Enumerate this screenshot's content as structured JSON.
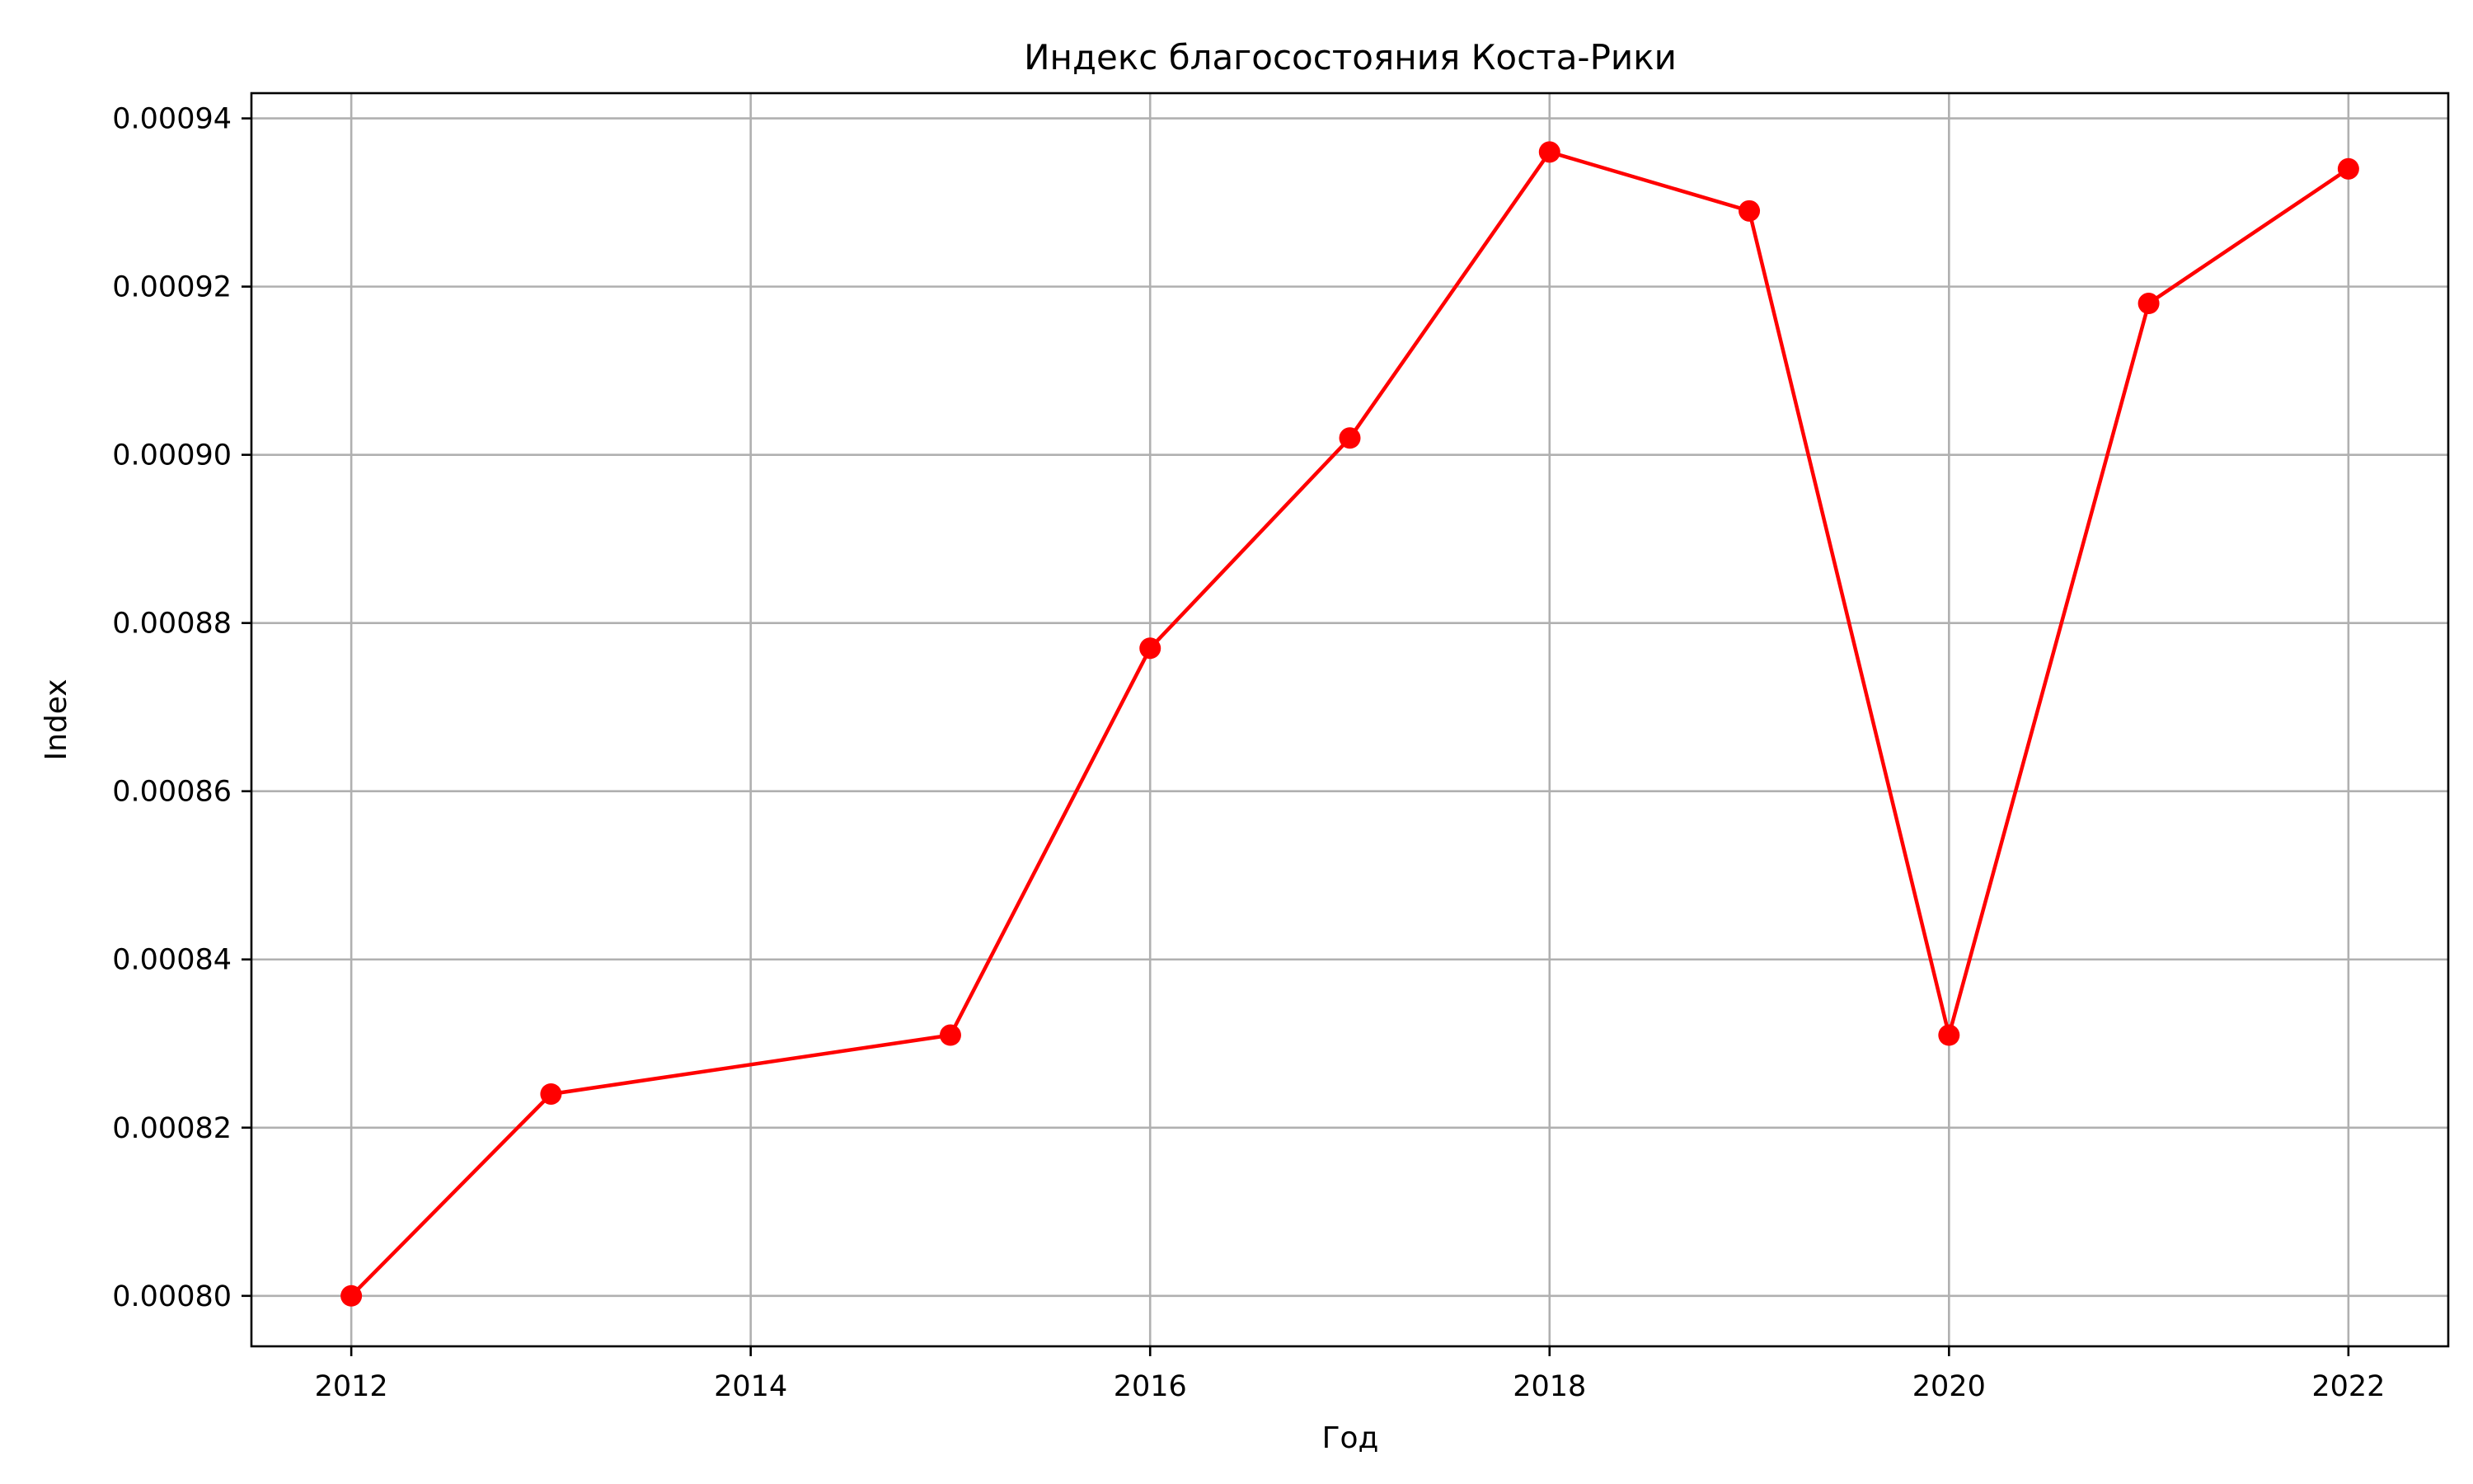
{
  "chart_data": {
    "type": "line",
    "title": "Индекс благосостояния Коста-Рики",
    "xlabel": "Год",
    "ylabel": "Index",
    "xlim": [
      2011.5,
      2022.5
    ],
    "ylim": [
      0.000794,
      0.000943
    ],
    "x_ticks": [
      2012,
      2014,
      2016,
      2018,
      2020,
      2022
    ],
    "y_ticks": [
      0.0008,
      0.00082,
      0.00084,
      0.00086,
      0.00088,
      0.0009,
      0.00092,
      0.00094
    ],
    "y_tick_labels": [
      "0.00080",
      "0.00082",
      "0.00084",
      "0.00086",
      "0.00088",
      "0.00090",
      "0.00092",
      "0.00094"
    ],
    "grid": true,
    "series": [
      {
        "color": "#ff0000",
        "marker": "circle",
        "x": [
          2012,
          2013,
          2015,
          2016,
          2017,
          2018,
          2019,
          2020,
          2021,
          2022
        ],
        "y": [
          0.0008,
          0.000824,
          0.000831,
          0.000877,
          0.000902,
          0.000936,
          0.000929,
          0.000831,
          0.000918,
          0.000934
        ]
      }
    ]
  }
}
